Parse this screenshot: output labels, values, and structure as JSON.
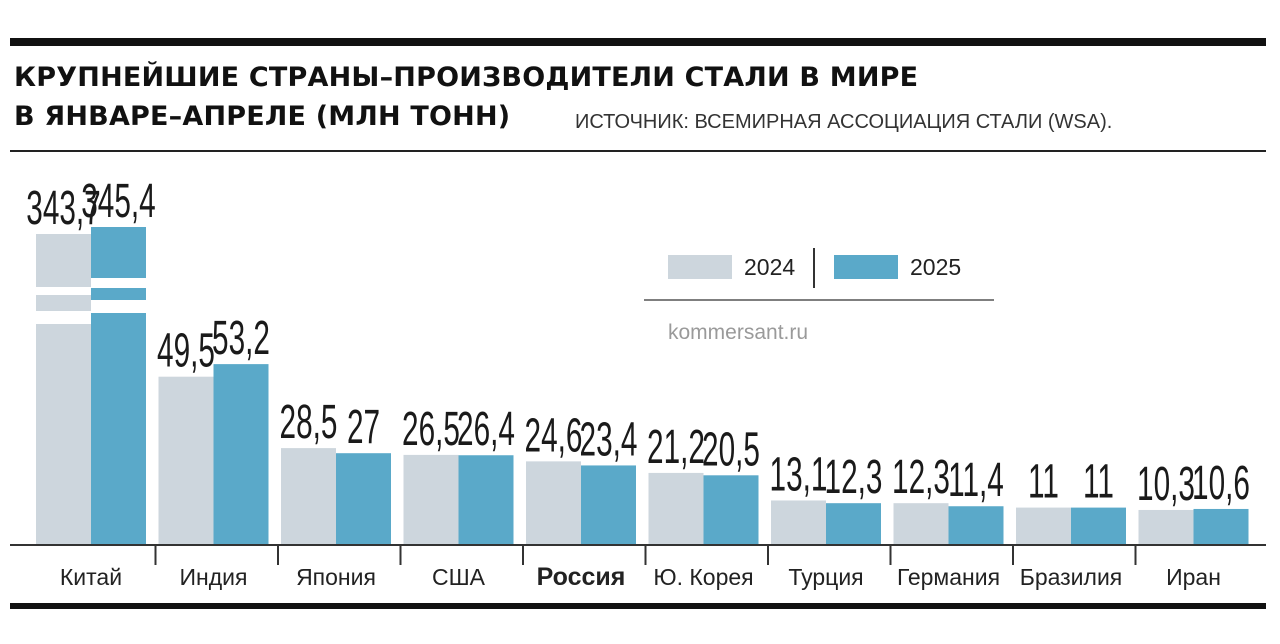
{
  "title_line1": "КРУПНЕЙШИЕ СТРАНЫ–ПРОИЗВОДИТЕЛИ СТАЛИ В МИРЕ",
  "title_line2": "В ЯНВАРЕ–АПРЕЛЕ (МЛН ТОНН)",
  "source": "ИСТОЧНИК: ВСЕМИРНАЯ АССОЦИАЦИЯ СТАЛИ (WSA).",
  "credit": "kommersant.ru",
  "colors": {
    "2024": "#cdd6dd",
    "2025": "#5aa9c9",
    "axis": "#333333"
  },
  "chart_data": {
    "type": "bar",
    "categories": [
      "Китай",
      "Индия",
      "Япония",
      "США",
      "Россия",
      "Ю. Корея",
      "Турция",
      "Германия",
      "Бразилия",
      "Иран"
    ],
    "highlight_category": "Россия",
    "axis_break": {
      "category": "Китай",
      "note": "broken bars"
    },
    "series": [
      {
        "name": "2024",
        "values": [
          343.7,
          49.5,
          28.5,
          26.5,
          24.6,
          21.2,
          13.1,
          12.3,
          11,
          10.3
        ],
        "labels": [
          "343,7",
          "49,5",
          "28,5",
          "26,5",
          "24,6",
          "21,2",
          "13,1",
          "12,3",
          "11",
          "10,3"
        ]
      },
      {
        "name": "2025",
        "values": [
          345.4,
          53.2,
          27,
          26.4,
          23.4,
          20.5,
          12.3,
          11.4,
          11,
          10.6
        ],
        "labels": [
          "345,4",
          "53,2",
          "27",
          "26,4",
          "23,4",
          "20,5",
          "12,3",
          "11,4",
          "11",
          "10,6"
        ]
      }
    ],
    "legend": {
      "position": "top-right",
      "entries": [
        "2024",
        "2025"
      ]
    },
    "grid": false
  }
}
